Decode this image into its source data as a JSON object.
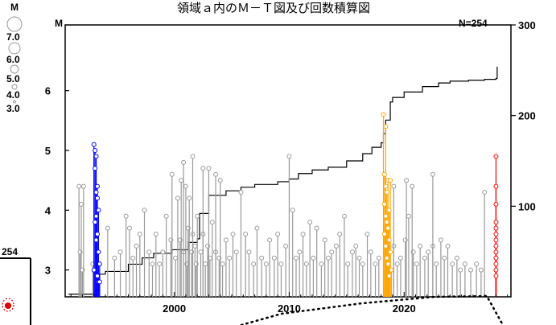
{
  "chart_data": {
    "type": "scatter",
    "title": "領域ａ内のＭ－Ｔ図及び回数積算図",
    "count_label": "N=254",
    "xlabel": "",
    "ylabel": "M",
    "x_ticks": [
      2000,
      2010,
      2020
    ],
    "xlim": [
      1990.5,
      2029.3
    ],
    "y_ticks": [
      3,
      4,
      5,
      6
    ],
    "ylim": [
      2.55,
      7.1
    ],
    "y2_ticks": [
      100,
      200,
      300
    ],
    "y2lim": [
      0,
      300
    ],
    "legend": {
      "title": "M",
      "entries": [
        7.0,
        6.0,
        5.0,
        4.0,
        3.0
      ],
      "placement": "left"
    },
    "inset_label": "254",
    "series": [
      {
        "color": "#999999",
        "events": [
          [
            1991.7,
            4.4
          ],
          [
            1991.8,
            3.3
          ],
          [
            1991.9,
            4.1
          ],
          [
            1992.0,
            3.0
          ],
          [
            1992.1,
            4.4
          ],
          [
            1992.9,
            3.1
          ],
          [
            1994.2,
            3.7
          ],
          [
            1994.8,
            3.2
          ],
          [
            1995.3,
            3.3
          ],
          [
            1995.8,
            3.9
          ],
          [
            1996.1,
            3.7
          ],
          [
            1996.4,
            3.2
          ],
          [
            1996.7,
            3.4
          ],
          [
            1997.0,
            3.6
          ],
          [
            1997.4,
            4.0
          ],
          [
            1997.8,
            3.3
          ],
          [
            1998.1,
            3.1
          ],
          [
            1998.4,
            3.6
          ],
          [
            1998.7,
            3.1
          ],
          [
            1999.0,
            3.3
          ],
          [
            1999.3,
            3.9
          ],
          [
            1999.7,
            3.5
          ],
          [
            2000.1,
            3.2
          ],
          [
            2000.3,
            4.2
          ],
          [
            2000.5,
            3.5
          ],
          [
            2000.8,
            3.3
          ],
          [
            2001.1,
            3.1
          ],
          [
            2001.2,
            3.7
          ],
          [
            2001.3,
            4.2
          ],
          [
            2001.5,
            3.3
          ],
          [
            2001.6,
            3.6
          ],
          [
            2001.8,
            3.4
          ],
          [
            2001.9,
            3.1
          ],
          [
            2002.0,
            3.9
          ],
          [
            2002.3,
            3.3
          ],
          [
            2002.5,
            3.6
          ],
          [
            2002.7,
            3.1
          ],
          [
            2002.9,
            3.4
          ],
          [
            2003.1,
            3.2
          ],
          [
            2003.3,
            3.8
          ],
          [
            2003.6,
            3.3
          ],
          [
            2003.9,
            3.2
          ],
          [
            2004.2,
            3.1
          ],
          [
            2004.5,
            3.5
          ],
          [
            2004.8,
            3.2
          ],
          [
            2005.1,
            3.6
          ],
          [
            2005.4,
            3.3
          ],
          [
            2005.8,
            4.3
          ],
          [
            2006.2,
            3.6
          ],
          [
            2006.5,
            3.3
          ],
          [
            2006.9,
            3.1
          ],
          [
            2007.2,
            3.7
          ],
          [
            2007.6,
            3.2
          ],
          [
            2008.0,
            3.1
          ],
          [
            2008.3,
            3.5
          ],
          [
            2008.7,
            3.2
          ],
          [
            2009.0,
            3.6
          ],
          [
            2009.3,
            3.1
          ],
          [
            2009.7,
            3.4
          ],
          [
            2010.0,
            4.9
          ],
          [
            2010.3,
            4.0
          ],
          [
            2010.6,
            3.2
          ],
          [
            2010.9,
            3.3
          ],
          [
            2011.2,
            3.6
          ],
          [
            2011.5,
            3.1
          ],
          [
            2011.8,
            3.8
          ],
          [
            2012.1,
            3.2
          ],
          [
            2012.4,
            3.7
          ],
          [
            2012.8,
            3.1
          ],
          [
            2013.1,
            3.5
          ],
          [
            2013.4,
            3.2
          ],
          [
            2013.7,
            3.3
          ],
          [
            2014.1,
            3.4
          ],
          [
            2014.4,
            3.6
          ],
          [
            2014.8,
            3.9
          ],
          [
            2015.1,
            3.1
          ],
          [
            2015.5,
            3.3
          ],
          [
            2015.8,
            3.4
          ],
          [
            2016.1,
            3.2
          ],
          [
            2016.4,
            3.1
          ],
          [
            2016.8,
            3.6
          ],
          [
            2017.1,
            3.3
          ],
          [
            2017.5,
            3.1
          ],
          [
            2017.8,
            3.2
          ],
          [
            2019.1,
            3.4
          ],
          [
            2019.4,
            3.1
          ],
          [
            2019.7,
            3.2
          ],
          [
            2020.1,
            3.5
          ],
          [
            2020.4,
            3.9
          ],
          [
            2020.8,
            3.3
          ],
          [
            2021.1,
            3.1
          ],
          [
            2021.4,
            3.4
          ],
          [
            2021.8,
            3.2
          ],
          [
            2022.1,
            3.3
          ],
          [
            2022.5,
            3.4
          ],
          [
            2022.8,
            3.1
          ],
          [
            2023.2,
            3.5
          ],
          [
            2023.5,
            3.2
          ],
          [
            2023.8,
            3.4
          ],
          [
            2024.2,
            3.1
          ],
          [
            2024.6,
            3.2
          ],
          [
            2024.9,
            3.0
          ],
          [
            2025.3,
            3.1
          ],
          [
            2025.8,
            3.0
          ],
          [
            2026.3,
            3.1
          ],
          [
            2026.7,
            3.0
          ],
          [
            2027.0,
            4.3
          ],
          [
            2001.6,
            4.9
          ],
          [
            2002.5,
            4.7
          ],
          [
            1999.8,
            4.6
          ],
          [
            2000.6,
            4.5
          ],
          [
            2003.0,
            4.7
          ],
          [
            2003.6,
            4.6
          ],
          [
            2004.0,
            4.5
          ],
          [
            2000.8,
            4.8
          ],
          [
            2001.0,
            4.4
          ],
          [
            2020.2,
            4.5
          ],
          [
            2022.5,
            4.6
          ],
          [
            2019.1,
            4.4
          ],
          [
            2020.7,
            4.4
          ]
        ]
      },
      {
        "color": "#0000ff",
        "events": [
          [
            1993.0,
            5.1
          ],
          [
            1993.1,
            5.0
          ],
          [
            1993.2,
            4.9
          ],
          [
            1993.1,
            4.7
          ],
          [
            1993.3,
            4.4
          ],
          [
            1993.2,
            4.3
          ],
          [
            1993.3,
            4.2
          ],
          [
            1993.4,
            4.0
          ],
          [
            1993.2,
            3.9
          ],
          [
            1993.1,
            3.8
          ],
          [
            1993.3,
            3.6
          ],
          [
            1993.2,
            3.5
          ],
          [
            1993.4,
            3.3
          ],
          [
            1993.5,
            3.1
          ],
          [
            1993.0,
            3.0
          ],
          [
            1993.3,
            2.9
          ],
          [
            1993.4,
            2.8
          ],
          [
            1993.5,
            2.8
          ]
        ]
      },
      {
        "color": "#ffa500",
        "events": [
          [
            2018.2,
            5.6
          ],
          [
            2018.4,
            5.4
          ],
          [
            2018.3,
            4.6
          ],
          [
            2018.6,
            4.5
          ],
          [
            2018.8,
            4.5
          ],
          [
            2018.4,
            4.4
          ],
          [
            2018.5,
            4.3
          ],
          [
            2018.3,
            4.1
          ],
          [
            2018.7,
            4.0
          ],
          [
            2018.4,
            3.9
          ],
          [
            2018.5,
            3.8
          ],
          [
            2018.6,
            3.7
          ],
          [
            2018.3,
            3.6
          ],
          [
            2018.7,
            3.5
          ],
          [
            2018.4,
            3.4
          ],
          [
            2018.8,
            3.3
          ],
          [
            2018.5,
            3.2
          ],
          [
            2018.6,
            3.1
          ],
          [
            2018.9,
            3.0
          ],
          [
            2018.7,
            2.9
          ]
        ]
      },
      {
        "color": "#ff0000",
        "events": [
          [
            2028.0,
            4.9
          ],
          [
            2028.0,
            4.4
          ],
          [
            2028.0,
            4.1
          ],
          [
            2028.0,
            3.8
          ],
          [
            2028.0,
            3.7
          ],
          [
            2028.0,
            3.6
          ],
          [
            2028.0,
            3.5
          ],
          [
            2028.0,
            3.4
          ],
          [
            2028.0,
            3.3
          ],
          [
            2028.0,
            3.2
          ],
          [
            2028.0,
            3.1
          ],
          [
            2028.0,
            3.0
          ],
          [
            2028.0,
            2.9
          ]
        ]
      }
    ],
    "cumulative": [
      [
        1990.8,
        3
      ],
      [
        1993.0,
        3
      ],
      [
        1993.1,
        7
      ],
      [
        1993.5,
        25
      ],
      [
        1994.0,
        28
      ],
      [
        1996.0,
        36
      ],
      [
        1997.2,
        43
      ],
      [
        1998.2,
        48
      ],
      [
        1999.8,
        52
      ],
      [
        2001.2,
        60
      ],
      [
        2002.0,
        64
      ],
      [
        2002.2,
        92
      ],
      [
        2003.0,
        112
      ],
      [
        2004.5,
        117
      ],
      [
        2005.8,
        121
      ],
      [
        2007.0,
        124
      ],
      [
        2009.0,
        127
      ],
      [
        2010.0,
        130
      ],
      [
        2010.8,
        136
      ],
      [
        2012.0,
        140
      ],
      [
        2013.4,
        143
      ],
      [
        2015.0,
        150
      ],
      [
        2016.4,
        158
      ],
      [
        2017.2,
        165
      ],
      [
        2018.0,
        170
      ],
      [
        2018.2,
        180
      ],
      [
        2018.4,
        195
      ],
      [
        2018.8,
        215
      ],
      [
        2019.0,
        220
      ],
      [
        2020.0,
        226
      ],
      [
        2021.6,
        232
      ],
      [
        2023.0,
        236
      ],
      [
        2024.0,
        238
      ],
      [
        2025.6,
        239
      ],
      [
        2027.0,
        240
      ],
      [
        2028.0,
        241
      ],
      [
        2028.1,
        254
      ]
    ]
  }
}
